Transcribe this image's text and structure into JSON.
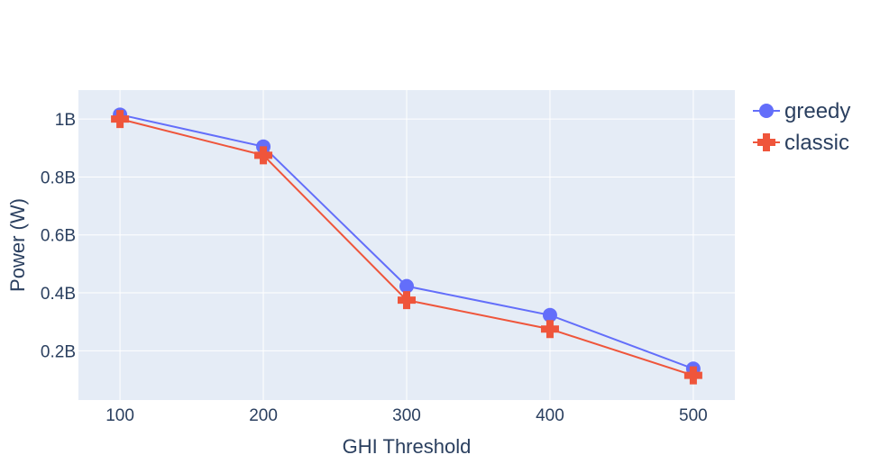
{
  "chart_data": {
    "type": "line",
    "title": "",
    "xlabel": "GHI Threshold",
    "ylabel": "Power (W)",
    "x": [
      100,
      200,
      300,
      400,
      500
    ],
    "x_ticks": [
      "100",
      "200",
      "300",
      "400",
      "500"
    ],
    "xlim": [
      71,
      529
    ],
    "y_ticks": [
      {
        "value": 200000000,
        "label": "0.2B"
      },
      {
        "value": 400000000,
        "label": "0.4B"
      },
      {
        "value": 600000000,
        "label": "0.6B"
      },
      {
        "value": 800000000,
        "label": "0.8B"
      },
      {
        "value": 1000000000,
        "label": "1B"
      }
    ],
    "ylim": [
      30000000,
      1100000000
    ],
    "grid": true,
    "plot_background": "#e5ecf6",
    "legend_position": "top-right",
    "series": [
      {
        "name": "greedy",
        "color": "#636efa",
        "marker": "circle",
        "values": [
          1015000000,
          905000000,
          423000000,
          323000000,
          138000000
        ]
      },
      {
        "name": "classic",
        "color": "#ef553b",
        "marker": "cross",
        "values": [
          1000000000,
          875000000,
          375000000,
          275000000,
          115000000
        ]
      }
    ]
  }
}
